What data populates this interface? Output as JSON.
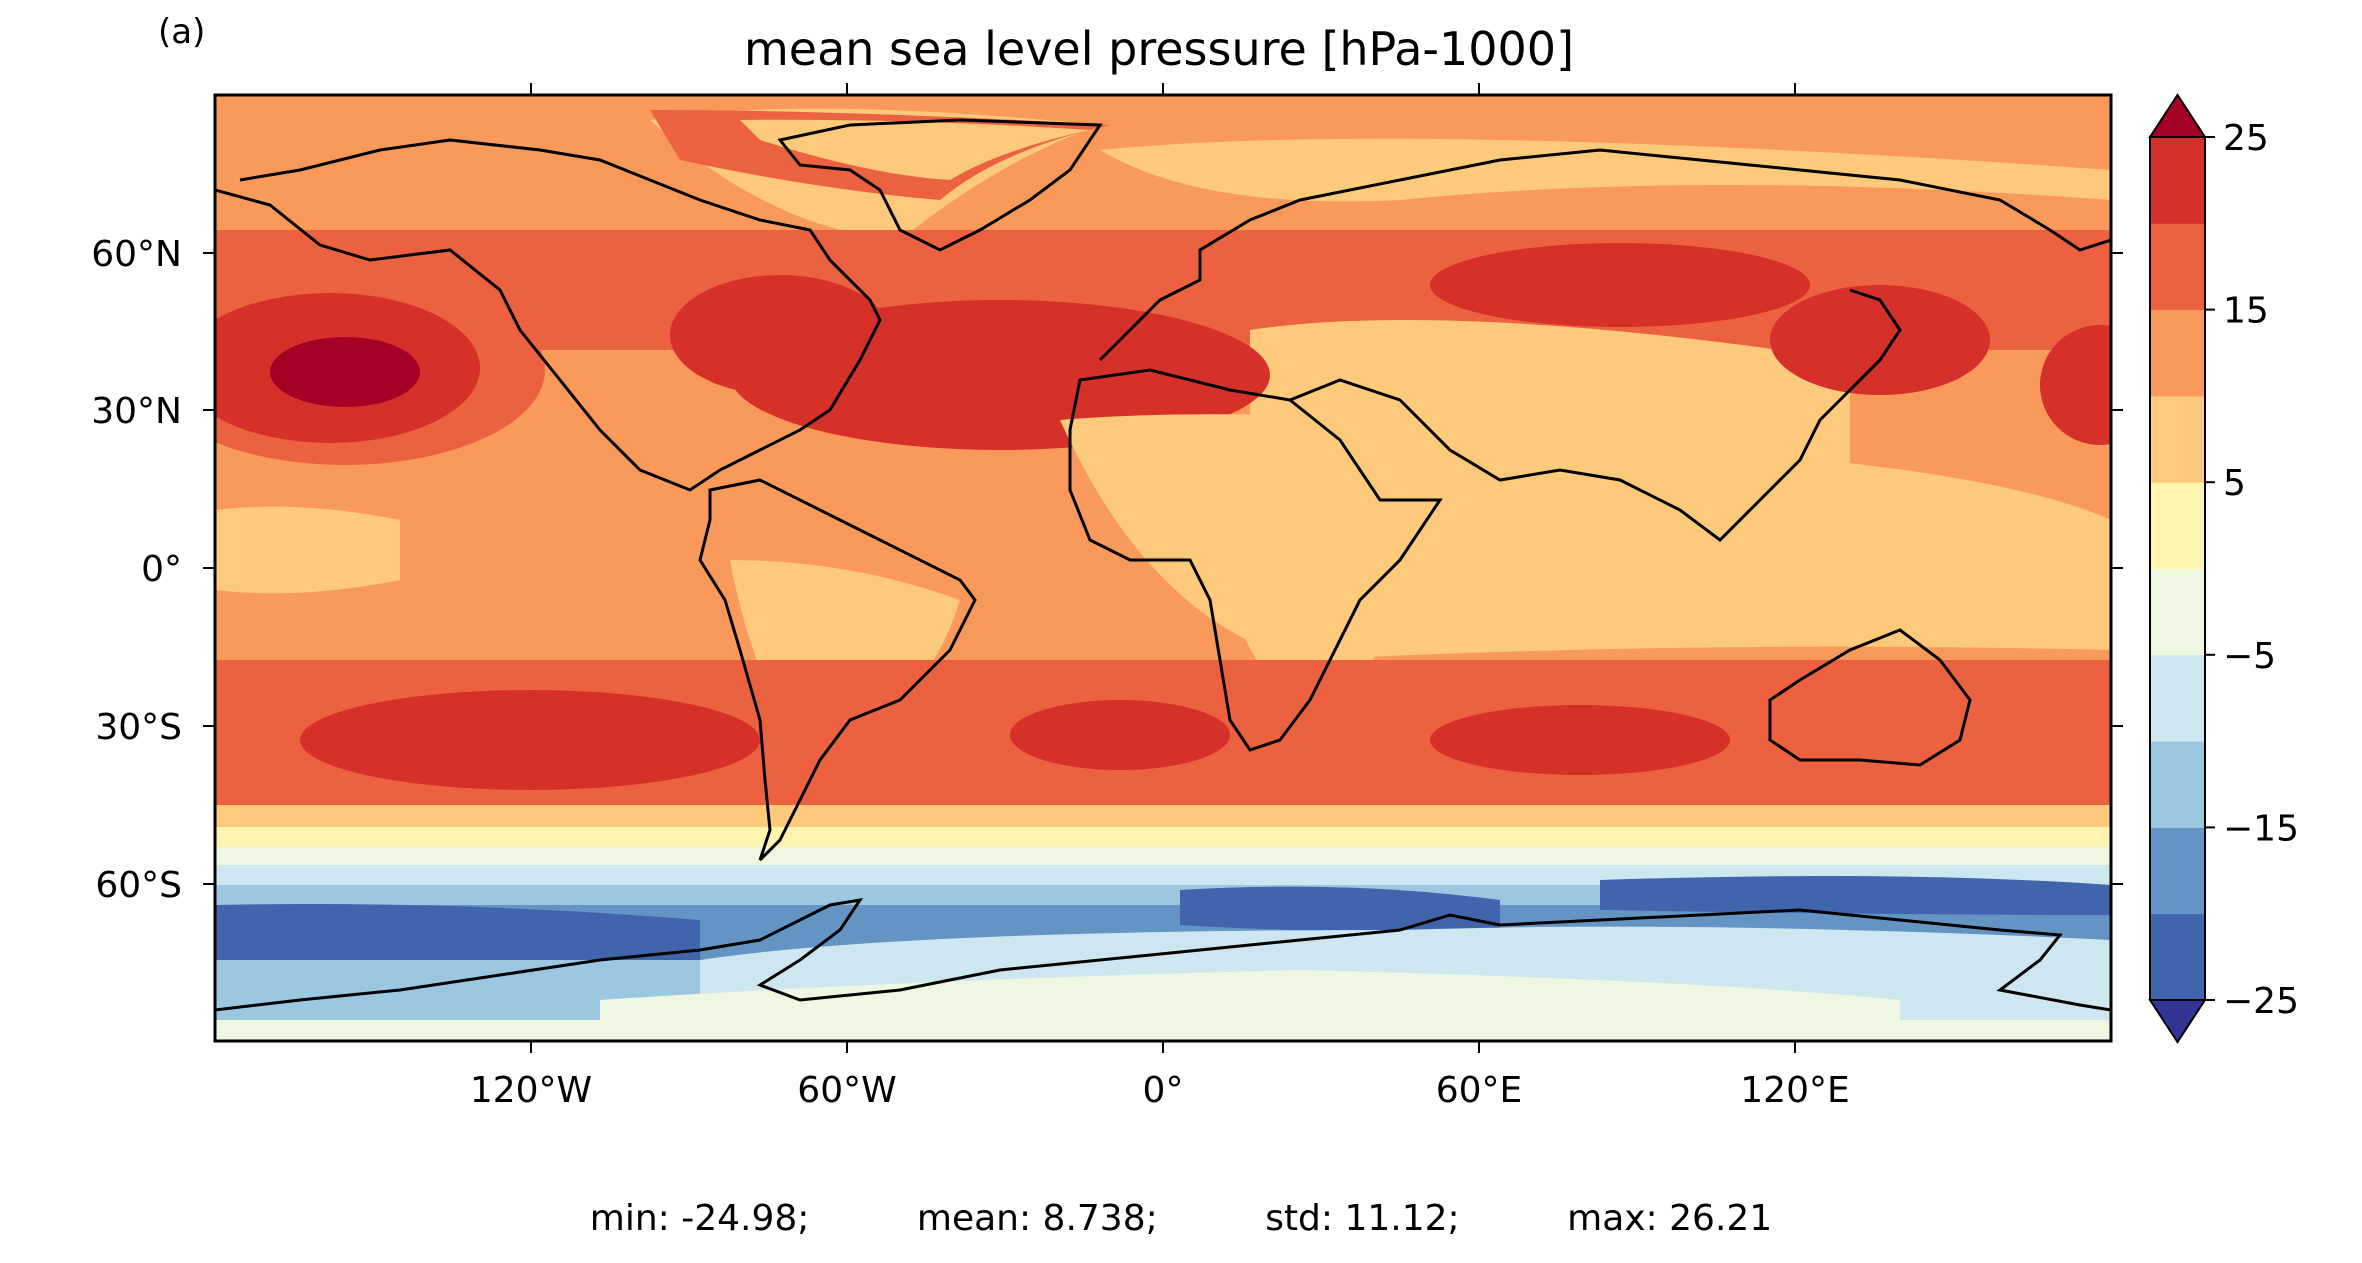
{
  "panel_label": "(a)",
  "title": "mean sea level pressure [hPa-1000]",
  "stats": {
    "min": "min: -24.98;",
    "mean": "mean: 8.738;",
    "std": "std: 11.12;",
    "max": "max: 26.21"
  },
  "lat_ticks": [
    "60°N",
    "30°N",
    "0°",
    "30°S",
    "60°S"
  ],
  "lon_ticks": [
    "120°W",
    "60°W",
    "0°",
    "60°E",
    "120°E"
  ],
  "colorbar": {
    "tick_labels": [
      "25",
      "15",
      "5",
      "−5",
      "−15",
      "−25"
    ],
    "levels": [
      -25,
      -20,
      -15,
      -10,
      -5,
      0,
      5,
      10,
      15,
      20,
      25
    ],
    "colors": [
      "#4065ac",
      "#6394c4",
      "#9cc7e0",
      "#cde6f0",
      "#eef7e0",
      "#fff4b0",
      "#fdc97a",
      "#f99a5b",
      "#ec6241",
      "#d5302a"
    ],
    "under_color": "#313695",
    "over_color": "#a50026",
    "extend": "both"
  },
  "colormap": "RdYlBu_r",
  "projection": "PlateCarree",
  "coastlines": true
}
